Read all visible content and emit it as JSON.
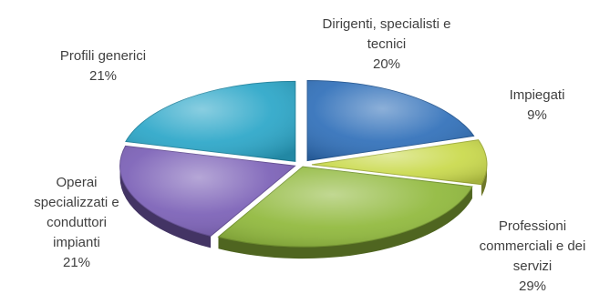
{
  "chart_data": {
    "type": "pie",
    "title": "",
    "slices": [
      {
        "label_lines": [
          "Dirigenti, specialisti e",
          "tecnici"
        ],
        "pct_label": "20%",
        "value": 20,
        "color": "#2f6fb9"
      },
      {
        "label_lines": [
          "Impiegati"
        ],
        "pct_label": "9%",
        "value": 9,
        "color": "#c9d94a"
      },
      {
        "label_lines": [
          "Professioni",
          "commerciali e dei",
          "servizi"
        ],
        "pct_label": "29%",
        "value": 29,
        "color": "#8fb83a"
      },
      {
        "label_lines": [
          "Operai",
          "specializzati e",
          "conduttori",
          "impianti"
        ],
        "pct_label": "21%",
        "value": 21,
        "color": "#7a5fb6"
      },
      {
        "label_lines": [
          "Profili generici"
        ],
        "pct_label": "21%",
        "value": 21,
        "color": "#2aa6c8"
      }
    ]
  }
}
